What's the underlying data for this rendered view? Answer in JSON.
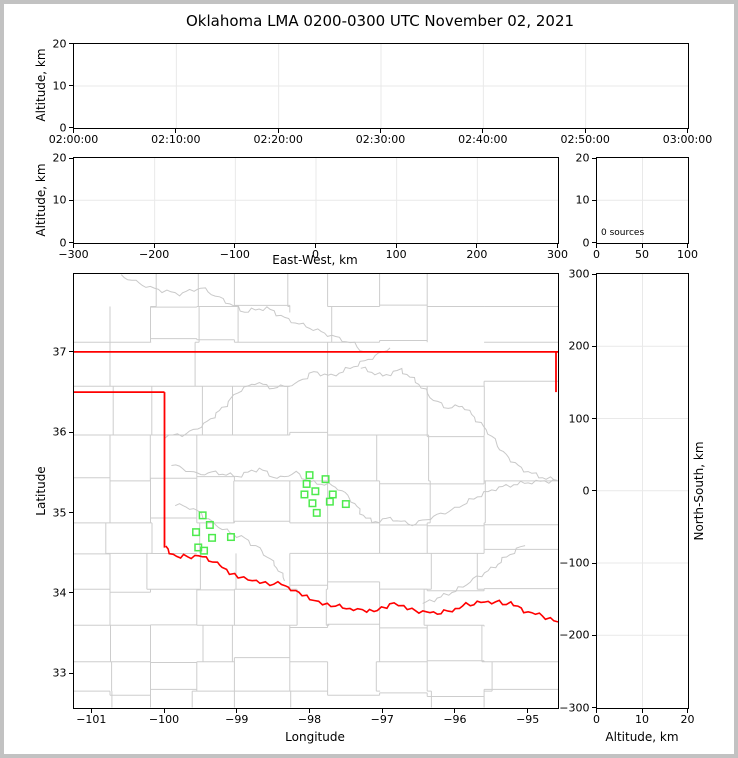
{
  "title": "Oklahoma LMA 0200-0300 UTC November 02, 2021",
  "window": {
    "border_color": "#c2c2c2",
    "background": "#ffffff"
  },
  "colors": {
    "axis": "#000000",
    "grid": "#e9e9e9",
    "county_line": "#cdcdcd",
    "river_line": "#c9c9c9",
    "state_border": "#ff0000",
    "station_marker": "#4dea4d",
    "text": "#000000"
  },
  "chart_data": {
    "type": "scatter",
    "panels": {
      "p1": {
        "name": "altitude-vs-time",
        "ylabel": "Altitude, km",
        "xticks": [
          "02:00:00",
          "02:10:00",
          "02:20:00",
          "02:30:00",
          "02:40:00",
          "02:50:00",
          "03:00:00"
        ],
        "yticks": [
          0,
          10,
          20
        ],
        "ylim": [
          0,
          20
        ],
        "series": []
      },
      "p2": {
        "name": "altitude-vs-east-west",
        "xlabel": "East-West, km",
        "ylabel": "Altitude, km",
        "xticks": [
          -300,
          -200,
          -100,
          0,
          100,
          200,
          300
        ],
        "xlim": [
          -300,
          300
        ],
        "yticks": [
          0,
          10,
          20
        ],
        "ylim": [
          0,
          20
        ],
        "series": []
      },
      "p3": {
        "name": "altitude-histogram",
        "annotation": "0 sources",
        "xticks": [
          0,
          50,
          100
        ],
        "xlim": [
          0,
          100
        ],
        "yticks": [
          0,
          10,
          20
        ],
        "ylim": [
          0,
          20
        ],
        "series": []
      },
      "map": {
        "name": "plan-view-map",
        "xlabel": "Longitude",
        "ylabel": "Latitude",
        "xticks": [
          -101,
          -100,
          -99,
          -98,
          -97,
          -96,
          -95
        ],
        "yticks": [
          37,
          36,
          35,
          34,
          33
        ],
        "lon_range": [
          -101.245,
          -94.59
        ],
        "lat_range": [
          32.575,
          37.97
        ],
        "series": []
      },
      "p5": {
        "name": "north-south-vs-altitude",
        "xlabel": "Altitude, km",
        "ylabel": "North-South, km",
        "xticks": [
          0,
          10,
          20
        ],
        "xlim": [
          0,
          20
        ],
        "yticks": [
          300,
          200,
          100,
          0,
          -100,
          -200,
          -300
        ],
        "ylim": [
          -300,
          300
        ],
        "series": []
      }
    },
    "stations_lon_lat": [
      [
        -98.01,
        35.47
      ],
      [
        -97.79,
        35.42
      ],
      [
        -98.05,
        35.36
      ],
      [
        -97.93,
        35.27
      ],
      [
        -98.08,
        35.23
      ],
      [
        -97.69,
        35.23
      ],
      [
        -97.73,
        35.14
      ],
      [
        -97.97,
        35.12
      ],
      [
        -97.51,
        35.11
      ],
      [
        -97.91,
        35.0
      ],
      [
        -99.48,
        34.97
      ],
      [
        -99.38,
        34.85
      ],
      [
        -99.57,
        34.76
      ],
      [
        -99.35,
        34.69
      ],
      [
        -99.09,
        34.7
      ],
      [
        -99.54,
        34.57
      ],
      [
        -99.46,
        34.53
      ]
    ],
    "state_borders_lon_lat": [
      [
        [
          -101.245,
          37.0
        ],
        [
          -94.59,
          37.0
        ]
      ],
      [
        [
          -101.245,
          36.5
        ],
        [
          -100.0,
          36.5
        ]
      ],
      [
        [
          -100.0,
          36.5
        ],
        [
          -100.0,
          34.565
        ]
      ],
      [
        [
          -94.618,
          37.0
        ],
        [
          -94.618,
          36.5
        ]
      ],
      [
        [
          -100.0,
          34.565
        ],
        [
          -99.88,
          34.48
        ],
        [
          -99.78,
          34.44
        ],
        [
          -99.68,
          34.46
        ],
        [
          -99.58,
          34.45
        ],
        [
          -99.48,
          34.46
        ],
        [
          -99.38,
          34.42
        ],
        [
          -99.28,
          34.37
        ],
        [
          -99.2,
          34.33
        ],
        [
          -99.1,
          34.25
        ],
        [
          -98.98,
          34.21
        ],
        [
          -98.85,
          34.17
        ],
        [
          -98.68,
          34.15
        ],
        [
          -98.55,
          34.12
        ],
        [
          -98.39,
          34.11
        ],
        [
          -98.25,
          34.05
        ],
        [
          -98.16,
          33.99
        ],
        [
          -98.0,
          33.93
        ],
        [
          -97.82,
          33.88
        ],
        [
          -97.65,
          33.84
        ],
        [
          -97.5,
          33.81
        ],
        [
          -97.35,
          33.79
        ],
        [
          -97.22,
          33.76
        ],
        [
          -97.08,
          33.8
        ],
        [
          -96.95,
          33.84
        ],
        [
          -96.85,
          33.86
        ],
        [
          -96.72,
          33.82
        ],
        [
          -96.6,
          33.78
        ],
        [
          -96.45,
          33.77
        ],
        [
          -96.3,
          33.75
        ],
        [
          -96.15,
          33.76
        ],
        [
          -96.0,
          33.8
        ],
        [
          -95.85,
          33.85
        ],
        [
          -95.7,
          33.88
        ],
        [
          -95.55,
          33.89
        ],
        [
          -95.4,
          33.88
        ],
        [
          -95.25,
          33.87
        ],
        [
          -95.1,
          33.8
        ],
        [
          -94.95,
          33.75
        ],
        [
          -94.8,
          33.72
        ],
        [
          -94.7,
          33.68
        ],
        [
          -94.59,
          33.64
        ]
      ]
    ],
    "rivers_lon_lat": [
      [
        [
          -100.0,
          35.95
        ],
        [
          -99.7,
          35.98
        ],
        [
          -99.45,
          36.1
        ],
        [
          -99.2,
          36.3
        ],
        [
          -99.0,
          36.5
        ],
        [
          -98.75,
          36.62
        ],
        [
          -98.5,
          36.55
        ],
        [
          -98.2,
          36.6
        ],
        [
          -97.95,
          36.75
        ],
        [
          -97.7,
          36.7
        ],
        [
          -97.4,
          36.82
        ],
        [
          -97.1,
          36.95
        ],
        [
          -96.9,
          37.05
        ]
      ],
      [
        [
          -97.3,
          36.8
        ],
        [
          -97.0,
          36.7
        ],
        [
          -96.75,
          36.78
        ],
        [
          -96.5,
          36.6
        ],
        [
          -96.3,
          36.4
        ],
        [
          -96.1,
          36.3
        ],
        [
          -95.9,
          36.33
        ],
        [
          -95.7,
          36.15
        ],
        [
          -95.5,
          35.95
        ],
        [
          -95.35,
          35.75
        ],
        [
          -95.1,
          35.55
        ],
        [
          -94.85,
          35.45
        ],
        [
          -94.6,
          35.4
        ]
      ],
      [
        [
          -99.9,
          35.6
        ],
        [
          -99.55,
          35.48
        ],
        [
          -99.3,
          35.5
        ],
        [
          -99.0,
          35.45
        ],
        [
          -98.7,
          35.55
        ],
        [
          -98.45,
          35.42
        ],
        [
          -98.2,
          35.5
        ],
        [
          -98.0,
          35.38
        ],
        [
          -97.75,
          35.35
        ],
        [
          -97.6,
          35.3
        ],
        [
          -97.45,
          35.18
        ],
        [
          -97.3,
          35.0
        ],
        [
          -97.15,
          34.88
        ],
        [
          -96.9,
          34.93
        ],
        [
          -96.6,
          34.85
        ],
        [
          -96.3,
          34.95
        ],
        [
          -96.0,
          35.05
        ],
        [
          -95.7,
          35.2
        ],
        [
          -95.45,
          35.3
        ],
        [
          -95.2,
          35.35
        ],
        [
          -94.95,
          35.38
        ],
        [
          -94.6,
          35.4
        ]
      ],
      [
        [
          -99.85,
          35.1
        ],
        [
          -99.6,
          35.05
        ],
        [
          -99.45,
          34.95
        ],
        [
          -99.3,
          34.85
        ],
        [
          -99.1,
          34.75
        ],
        [
          -98.9,
          34.68
        ],
        [
          -98.7,
          34.55
        ],
        [
          -98.55,
          34.42
        ],
        [
          -98.42,
          34.28
        ],
        [
          -98.35,
          34.15
        ]
      ],
      [
        [
          -95.05,
          34.6
        ],
        [
          -95.3,
          34.45
        ],
        [
          -95.5,
          34.3
        ],
        [
          -95.7,
          34.2
        ],
        [
          -95.95,
          34.05
        ],
        [
          -96.2,
          33.95
        ],
        [
          -96.45,
          33.87
        ]
      ],
      [
        [
          -100.6,
          37.95
        ],
        [
          -100.2,
          37.8
        ],
        [
          -99.8,
          37.72
        ],
        [
          -99.5,
          37.8
        ],
        [
          -99.2,
          37.65
        ],
        [
          -98.9,
          37.5
        ],
        [
          -98.6,
          37.55
        ],
        [
          -98.3,
          37.4
        ],
        [
          -98.0,
          37.3
        ],
        [
          -97.7,
          37.2
        ],
        [
          -97.4,
          37.1
        ],
        [
          -97.25,
          37.0
        ]
      ]
    ]
  }
}
